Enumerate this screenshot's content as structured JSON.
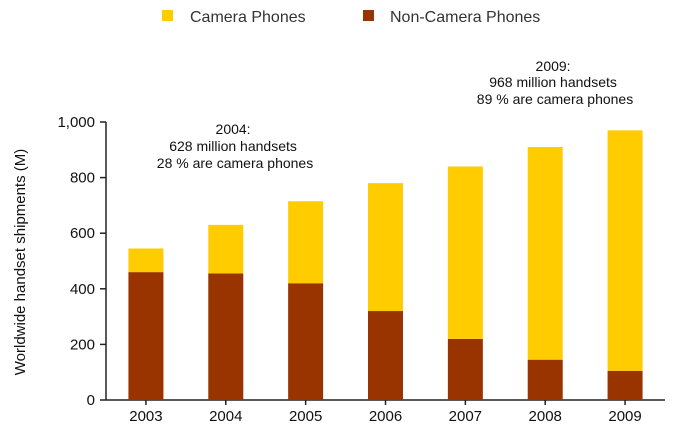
{
  "chart_data": {
    "type": "bar",
    "stacked": true,
    "title": "",
    "xlabel": "",
    "ylabel": "Worldwide handset shipments (M)",
    "ylim": [
      0,
      1000
    ],
    "yticks": [
      "0",
      "200",
      "400",
      "600",
      "800",
      "1,000"
    ],
    "ytick_values": [
      0,
      200,
      400,
      600,
      800,
      1000
    ],
    "categories": [
      "2003",
      "2004",
      "2005",
      "2006",
      "2007",
      "2008",
      "2009"
    ],
    "series": [
      {
        "name": "Non-Camera Phones",
        "color": "#993300",
        "values": [
          460,
          455,
          420,
          320,
          220,
          145,
          105
        ]
      },
      {
        "name": "Camera Phones",
        "color": "#FFCC00",
        "values": [
          85,
          175,
          295,
          460,
          620,
          765,
          865
        ]
      }
    ],
    "legend_position": "top-center",
    "grid": false,
    "annotations": [
      {
        "lines": [
          "2004:",
          "628 million handsets",
          "28 % are camera phones"
        ]
      },
      {
        "lines": [
          "2009:",
          "968 million handsets",
          "89 % are camera phones"
        ]
      }
    ]
  }
}
